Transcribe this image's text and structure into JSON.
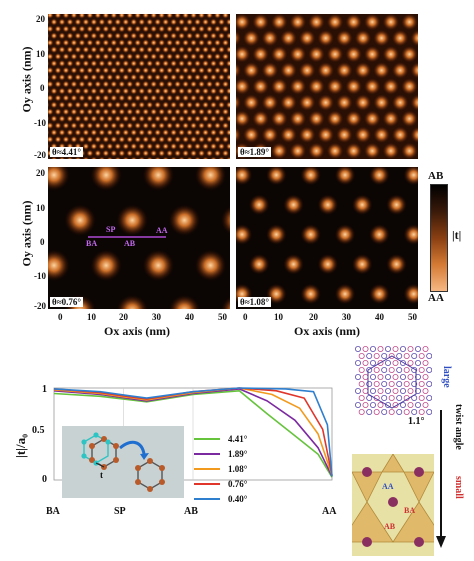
{
  "upper_figure": {
    "oy_axis_label": "Oy axis (nm)",
    "ox_axis_label": "Ox axis (nm)",
    "y_ticks": [
      "20",
      "10",
      "0",
      "-10",
      "-20"
    ],
    "x_ticks": [
      "0",
      "10",
      "20",
      "30",
      "40",
      "50"
    ],
    "panels": [
      {
        "label": "θ≈4.41°",
        "angle_deg": 4.41
      },
      {
        "label": "θ≈1.89°",
        "angle_deg": 1.89
      },
      {
        "label": "θ≈0.76°",
        "angle_deg": 0.76
      },
      {
        "label": "θ≈1.08°",
        "angle_deg": 1.08
      }
    ],
    "path_labels": {
      "sp": "SP",
      "aa": "AA",
      "ba": "BA",
      "ab": "AB"
    },
    "colorbar": {
      "top_label": "AB",
      "bottom_label": "AA",
      "title": "|t|",
      "colors": [
        "#000000",
        "#3a1a0a",
        "#8a3f12",
        "#d47a34",
        "#f7b884"
      ]
    }
  },
  "chart_data": {
    "type": "line",
    "x": [
      "BA",
      "SP",
      "AB",
      "AA"
    ],
    "xlabel": "",
    "ylabel": "|t|/a₀",
    "y_ticks": [
      "1",
      "0.5",
      "0"
    ],
    "ylim": [
      0,
      1
    ],
    "series": [
      {
        "name": "4.41°",
        "color": "#66c33c",
        "points": [
          [
            0,
            0.94
          ],
          [
            0.5,
            0.91
          ],
          [
            1,
            0.85
          ],
          [
            1.5,
            0.93
          ],
          [
            2,
            0.97
          ],
          [
            2.3,
            0.72
          ],
          [
            2.6,
            0.48
          ],
          [
            2.85,
            0.28
          ],
          [
            3,
            0.03
          ]
        ]
      },
      {
        "name": "1.89°",
        "color": "#7b2aa0",
        "points": [
          [
            0,
            0.97
          ],
          [
            0.5,
            0.93
          ],
          [
            1,
            0.86
          ],
          [
            1.5,
            0.94
          ],
          [
            2,
            0.99
          ],
          [
            2.3,
            0.86
          ],
          [
            2.6,
            0.65
          ],
          [
            2.85,
            0.35
          ],
          [
            3,
            0.04
          ]
        ]
      },
      {
        "name": "1.08°",
        "color": "#f29a1e",
        "points": [
          [
            0,
            0.98
          ],
          [
            0.5,
            0.94
          ],
          [
            1,
            0.87
          ],
          [
            1.5,
            0.95
          ],
          [
            2,
            1.0
          ],
          [
            2.35,
            0.93
          ],
          [
            2.65,
            0.78
          ],
          [
            2.85,
            0.5
          ],
          [
            3,
            0.05
          ]
        ]
      },
      {
        "name": "0.76°",
        "color": "#e0352b",
        "points": [
          [
            0,
            0.99
          ],
          [
            0.5,
            0.95
          ],
          [
            1,
            0.88
          ],
          [
            1.5,
            0.96
          ],
          [
            2,
            1.0
          ],
          [
            2.4,
            0.97
          ],
          [
            2.7,
            0.89
          ],
          [
            2.9,
            0.55
          ],
          [
            3,
            0.05
          ]
        ]
      },
      {
        "name": "0.40°",
        "color": "#2f7fcf",
        "points": [
          [
            0,
            0.99
          ],
          [
            0.5,
            0.96
          ],
          [
            1,
            0.89
          ],
          [
            1.5,
            0.96
          ],
          [
            2,
            1.0
          ],
          [
            2.5,
            0.99
          ],
          [
            2.8,
            0.96
          ],
          [
            2.95,
            0.6
          ],
          [
            3,
            0.04
          ]
        ]
      }
    ]
  },
  "inset": {
    "t_label": "t"
  },
  "side_panel": {
    "large_label": "large",
    "angle_value": "1.1°",
    "axis_label": "twist angle",
    "small_label": "small",
    "region_labels": {
      "aa": "AA",
      "ba": "BA",
      "ab": "AB"
    }
  },
  "colors": {
    "hot": "#f7b884",
    "mid": "#b25a1c",
    "dark": "#000000"
  }
}
